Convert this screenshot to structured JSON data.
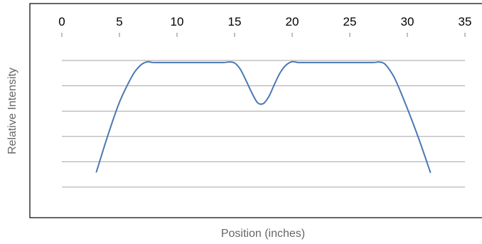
{
  "chart_data": {
    "type": "line",
    "xlabel": "Position (inches)",
    "ylabel": "Relative Intensity",
    "xlim": [
      0,
      35
    ],
    "x_ticks": [
      "0",
      "5",
      "10",
      "15",
      "20",
      "25",
      "30",
      "35"
    ],
    "x_axis_position": "top",
    "ylim": [
      0,
      6
    ],
    "y_tick_labels_shown": false,
    "grid": {
      "horizontal": true,
      "count": 6
    },
    "legend": "none",
    "line_color": "#4a78b5",
    "series": [
      {
        "x": [
          3,
          4,
          5,
          6,
          6.5,
          7,
          7.5,
          8,
          10,
          12,
          14,
          14.5,
          15,
          15.5,
          16,
          16.5,
          17,
          17.5,
          18,
          18.5,
          19,
          19.5,
          20,
          20.5,
          21,
          23,
          25,
          27,
          27.5,
          28,
          28.5,
          29,
          30,
          31,
          32
        ],
        "y": [
          0.6,
          2.05,
          3.35,
          4.3,
          4.65,
          4.87,
          4.95,
          4.92,
          4.92,
          4.92,
          4.92,
          4.94,
          4.9,
          4.65,
          4.2,
          3.72,
          3.33,
          3.3,
          3.6,
          4.1,
          4.55,
          4.83,
          4.95,
          4.92,
          4.92,
          4.92,
          4.92,
          4.92,
          4.94,
          4.88,
          4.6,
          4.2,
          3.1,
          1.9,
          0.58
        ]
      }
    ]
  }
}
